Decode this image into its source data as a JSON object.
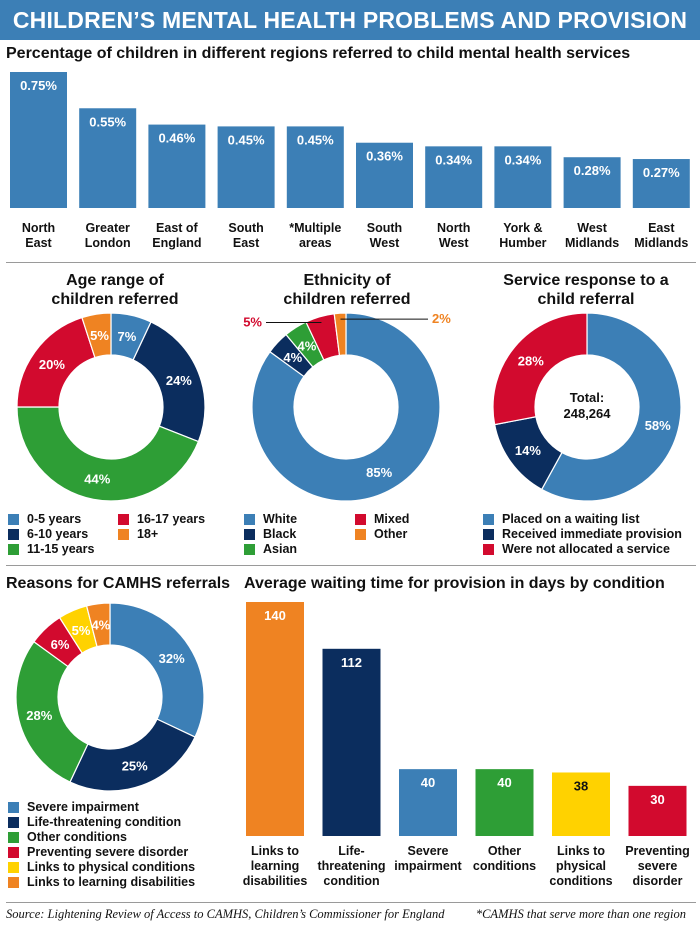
{
  "title": "CHILDREN’S MENTAL HEALTH PROBLEMS AND PROVISION IN ENGLAND",
  "source": "Source: Lightening Review of Access to CAMHS, Children’s Commissioner for England",
  "footnote": "*CAMHS that serve more than one region",
  "colors": {
    "blue": "#3c7fb6",
    "navy": "#0b2d5e",
    "red": "#d20a2e",
    "green": "#2e9e36",
    "orange": "#ef8322",
    "yellow": "#ffd200",
    "mixed_label": "#d20a2e",
    "other_label": "#ef8322"
  },
  "chart_data": [
    {
      "type": "bar",
      "title": "Percentage of children in different regions referred to child mental health services",
      "categories": [
        [
          "North",
          "East"
        ],
        [
          "Greater",
          "London"
        ],
        [
          "East of",
          "England"
        ],
        [
          "South",
          "East"
        ],
        [
          "*Multiple",
          "areas"
        ],
        [
          "South",
          "West"
        ],
        [
          "North",
          "West"
        ],
        [
          "York &",
          "Humber"
        ],
        [
          "West",
          "Midlands"
        ],
        [
          "East",
          "Midlands"
        ]
      ],
      "values": [
        0.75,
        0.55,
        0.46,
        0.45,
        0.45,
        0.36,
        0.34,
        0.34,
        0.28,
        0.27
      ],
      "labels": [
        "0.75%",
        "0.55%",
        "0.46%",
        "0.45%",
        "0.45%",
        "0.36%",
        "0.34%",
        "0.34%",
        "0.28%",
        "0.27%"
      ],
      "ylim": [
        0,
        0.75
      ],
      "color": "blue"
    },
    {
      "type": "pie",
      "title": [
        "Age range of",
        "children referred"
      ],
      "slices": [
        {
          "name": "0-5 years",
          "value": 7,
          "label": "7%",
          "color": "blue"
        },
        {
          "name": "6-10 years",
          "value": 24,
          "label": "24%",
          "color": "navy"
        },
        {
          "name": "11-15 years",
          "value": 44,
          "label": "44%",
          "color": "green"
        },
        {
          "name": "16-17 years",
          "value": 20,
          "label": "20%",
          "color": "red"
        },
        {
          "name": "18+",
          "value": 5,
          "label": "5%",
          "color": "orange"
        }
      ]
    },
    {
      "type": "pie",
      "title": [
        "Ethnicity of",
        "children referred"
      ],
      "slices": [
        {
          "name": "White",
          "value": 85,
          "label": "85%",
          "color": "blue"
        },
        {
          "name": "Black",
          "value": 4,
          "label": "4%",
          "color": "navy"
        },
        {
          "name": "Asian",
          "value": 4,
          "label": "4%",
          "color": "green"
        },
        {
          "name": "Mixed",
          "value": 5,
          "label": "5%",
          "color": "red"
        },
        {
          "name": "Other",
          "value": 2,
          "label": "2%",
          "color": "orange"
        }
      ]
    },
    {
      "type": "pie",
      "title": [
        "Service response to a",
        "child referral"
      ],
      "center_label": [
        "Total:",
        "248,264"
      ],
      "slices": [
        {
          "name": "Placed on a waiting list",
          "value": 58,
          "label": "58%",
          "color": "blue"
        },
        {
          "name": "Received immediate provision",
          "value": 14,
          "label": "14%",
          "color": "navy"
        },
        {
          "name": "Were not allocated a service",
          "value": 28,
          "label": "28%",
          "color": "red"
        }
      ]
    },
    {
      "type": "pie",
      "title": "Reasons for CAMHS referrals",
      "slices": [
        {
          "name": "Severe impairment",
          "value": 32,
          "label": "32%",
          "color": "blue"
        },
        {
          "name": "Life-threatening condition",
          "value": 25,
          "label": "25%",
          "color": "navy"
        },
        {
          "name": "Other conditions",
          "value": 28,
          "label": "28%",
          "color": "green"
        },
        {
          "name": "Preventing severe disorder",
          "value": 6,
          "label": "6%",
          "color": "red"
        },
        {
          "name": "Links to physical conditions",
          "value": 5,
          "label": "5%",
          "color": "yellow"
        },
        {
          "name": "Links to learning disabilities",
          "value": 4,
          "label": "4%",
          "color": "orange"
        }
      ]
    },
    {
      "type": "bar",
      "title": "Average waiting time for provision in days by condition",
      "categories": [
        [
          "Links to",
          "learning",
          "disabilities"
        ],
        [
          "Life-",
          "threatening",
          "condition"
        ],
        [
          "Severe",
          "impairment"
        ],
        [
          "Other",
          "conditions"
        ],
        [
          "Links to",
          "physical",
          "conditions"
        ],
        [
          "Preventing",
          "severe",
          "disorder"
        ]
      ],
      "values": [
        140,
        112,
        40,
        40,
        38,
        30
      ],
      "labels": [
        "140",
        "112",
        "40",
        "40",
        "38",
        "30"
      ],
      "colors": [
        "orange",
        "navy",
        "blue",
        "green",
        "yellow",
        "red"
      ],
      "ylim": [
        0,
        140
      ]
    }
  ]
}
